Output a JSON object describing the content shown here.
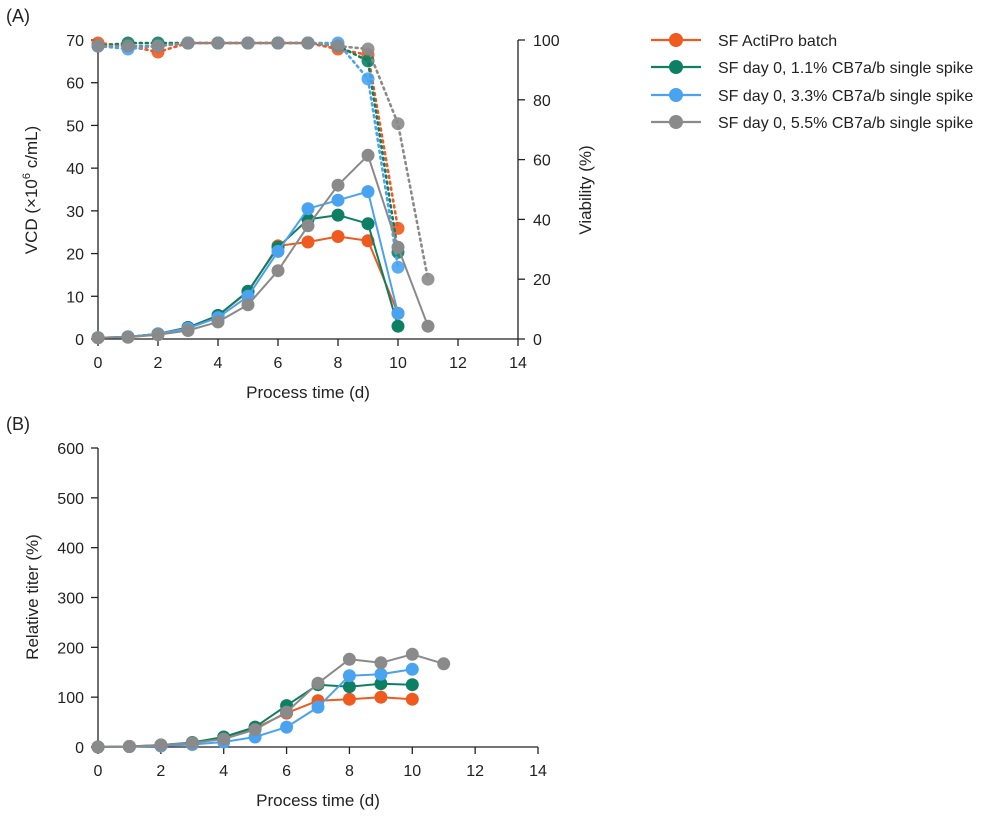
{
  "panels": {
    "a_label": "(A)",
    "b_label": "(B)"
  },
  "colors": {
    "orange": "#ef5a1f",
    "green": "#0d7f62",
    "blue": "#4aa3f0",
    "gray": "#8a8a8a"
  },
  "chart_data": [
    {
      "type": "line",
      "panel": "A",
      "title": "",
      "xlabel": "Process time (d)",
      "ylabel": "VCD (×10",
      "ylabel_sup": "6",
      "ylabel_suffix": " c/mL)",
      "y2label": "Viability (%)",
      "xlim": [
        0,
        14
      ],
      "ylim": [
        0,
        70
      ],
      "y2lim": [
        0,
        100
      ],
      "xticks": [
        "0",
        "2",
        "4",
        "6",
        "8",
        "10",
        "12",
        "14"
      ],
      "yticks": [
        "0",
        "10",
        "20",
        "30",
        "40",
        "50",
        "60",
        "70"
      ],
      "y2ticks": [
        "0",
        "20",
        "40",
        "60",
        "80",
        "100"
      ],
      "legend_position": "right",
      "series": [
        {
          "name": "SF ActiPro batch",
          "color": "#ef5a1f",
          "vcd_x": [
            0,
            1,
            2,
            3,
            4,
            5,
            6,
            7,
            8,
            9,
            10
          ],
          "vcd": [
            0.3,
            0.5,
            1.2,
            2.7,
            5.5,
            11.0,
            21.8,
            22.7,
            24.0,
            23.0,
            6.0
          ],
          "viability_x": [
            0,
            1,
            2,
            3,
            4,
            5,
            6,
            7,
            8,
            9,
            10
          ],
          "viability": [
            99,
            98,
            96,
            99,
            99,
            99,
            99,
            99,
            97,
            95,
            37
          ]
        },
        {
          "name": "SF day 0, 1.1% CB7a/b single spike",
          "color": "#0d7f62",
          "vcd_x": [
            0,
            1,
            2,
            3,
            4,
            5,
            6,
            7,
            8,
            9,
            10
          ],
          "vcd": [
            0.3,
            0.5,
            1.2,
            2.7,
            5.5,
            11.2,
            21.5,
            28.0,
            29.0,
            27.0,
            3.0
          ],
          "viability_x": [
            0,
            1,
            2,
            3,
            4,
            5,
            6,
            7,
            8,
            9,
            10
          ],
          "viability": [
            98,
            99,
            99,
            99,
            99,
            99,
            99,
            99,
            98,
            93,
            29
          ]
        },
        {
          "name": "SF day 0, 3.3% CB7a/b single spike",
          "color": "#4aa3f0",
          "vcd_x": [
            0,
            1,
            2,
            3,
            4,
            5,
            6,
            7,
            8,
            9,
            10
          ],
          "vcd": [
            0.3,
            0.5,
            1.2,
            2.5,
            5.0,
            10.0,
            20.5,
            30.5,
            32.5,
            34.5,
            6.0
          ],
          "viability_x": [
            0,
            1,
            2,
            3,
            4,
            5,
            6,
            7,
            8,
            9,
            10
          ],
          "viability": [
            98,
            97,
            98,
            99,
            99,
            99,
            99,
            99,
            99,
            87,
            24
          ]
        },
        {
          "name": "SF day 0, 5.5% CB7a/b single spike",
          "color": "#8a8a8a",
          "vcd_x": [
            0,
            1,
            2,
            3,
            4,
            5,
            6,
            7,
            8,
            9,
            10,
            11
          ],
          "vcd": [
            0.3,
            0.4,
            1.0,
            2.0,
            4.0,
            8.0,
            16.0,
            26.5,
            36.0,
            43.0,
            21.5,
            3.0
          ],
          "viability_x": [
            0,
            1,
            2,
            3,
            4,
            5,
            6,
            7,
            8,
            9,
            10,
            11
          ],
          "viability": [
            98,
            98,
            98,
            99,
            99,
            99,
            99,
            99,
            98,
            97,
            72,
            20
          ]
        }
      ]
    },
    {
      "type": "line",
      "panel": "B",
      "title": "",
      "xlabel": "Process time (d)",
      "ylabel": "Relative titer (%)",
      "xlim": [
        0,
        14
      ],
      "ylim": [
        0,
        600
      ],
      "xticks": [
        "0",
        "2",
        "4",
        "6",
        "8",
        "10",
        "12",
        "14"
      ],
      "yticks": [
        "0",
        "100",
        "200",
        "300",
        "400",
        "500",
        "600"
      ],
      "series": [
        {
          "name": "SF ActiPro batch",
          "color": "#ef5a1f",
          "x": [
            0,
            1,
            2,
            3,
            4,
            5,
            6,
            7,
            8,
            9,
            10
          ],
          "values": [
            0,
            1,
            3,
            8,
            18,
            38,
            68,
            93,
            96,
            100,
            96
          ]
        },
        {
          "name": "SF day 0, 1.1% CB7a/b single spike",
          "color": "#0d7f62",
          "x": [
            0,
            1,
            2,
            3,
            4,
            5,
            6,
            7,
            8,
            9,
            10
          ],
          "values": [
            0,
            1,
            4,
            9,
            20,
            40,
            83,
            125,
            121,
            127,
            125
          ]
        },
        {
          "name": "SF day 0, 3.3% CB7a/b single spike",
          "color": "#4aa3f0",
          "x": [
            0,
            1,
            2,
            3,
            4,
            5,
            6,
            7,
            8,
            9,
            10
          ],
          "values": [
            0,
            1,
            2,
            5,
            10,
            20,
            40,
            80,
            143,
            146,
            156
          ]
        },
        {
          "name": "SF day 0, 5.5% CB7a/b single spike",
          "color": "#8a8a8a",
          "x": [
            0,
            1,
            2,
            3,
            4,
            5,
            6,
            7,
            8,
            9,
            10,
            11
          ],
          "values": [
            0,
            1,
            4,
            8,
            16,
            35,
            70,
            128,
            176,
            169,
            186,
            167
          ]
        }
      ]
    }
  ]
}
